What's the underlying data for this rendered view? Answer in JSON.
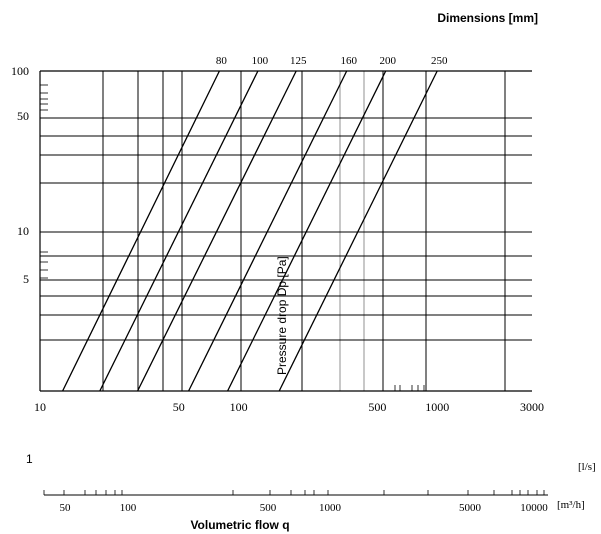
{
  "chart_data": {
    "type": "line",
    "title": "Dimensions [mm]",
    "ylabel": "Pressure drop Dp [Pa]",
    "xlabel": "Volumetric flow q",
    "x_scale": "log",
    "y_scale": "log",
    "xlim": [
      10,
      3000
    ],
    "ylim": [
      1,
      100
    ],
    "grid": true,
    "x_ticks": [
      "10",
      "50",
      "100",
      "500",
      "1000",
      "3000"
    ],
    "y_ticks": [
      "10",
      "5"
    ],
    "y_ticks_top": [
      "100",
      "50"
    ],
    "y_tick_bottom": "1",
    "x_unit_primary": "[l/s]",
    "x_unit_secondary": "[m³/h]",
    "secondary_axis_ticks": [
      "50",
      "100",
      "500",
      "1000",
      "5000",
      "10000"
    ],
    "series": [
      {
        "name": "80",
        "x": [
          13,
          80
        ],
        "y": [
          1,
          100
        ]
      },
      {
        "name": "100",
        "x": [
          20,
          125
        ],
        "y": [
          1,
          100
        ]
      },
      {
        "name": "125",
        "x": [
          31,
          195
        ],
        "y": [
          1,
          100
        ]
      },
      {
        "name": "160",
        "x": [
          56,
          350
        ],
        "y": [
          1,
          100
        ]
      },
      {
        "name": "200",
        "x": [
          88,
          550
        ],
        "y": [
          1,
          100
        ]
      },
      {
        "name": "250",
        "x": [
          160,
          1000
        ],
        "y": [
          1,
          100
        ]
      }
    ]
  }
}
